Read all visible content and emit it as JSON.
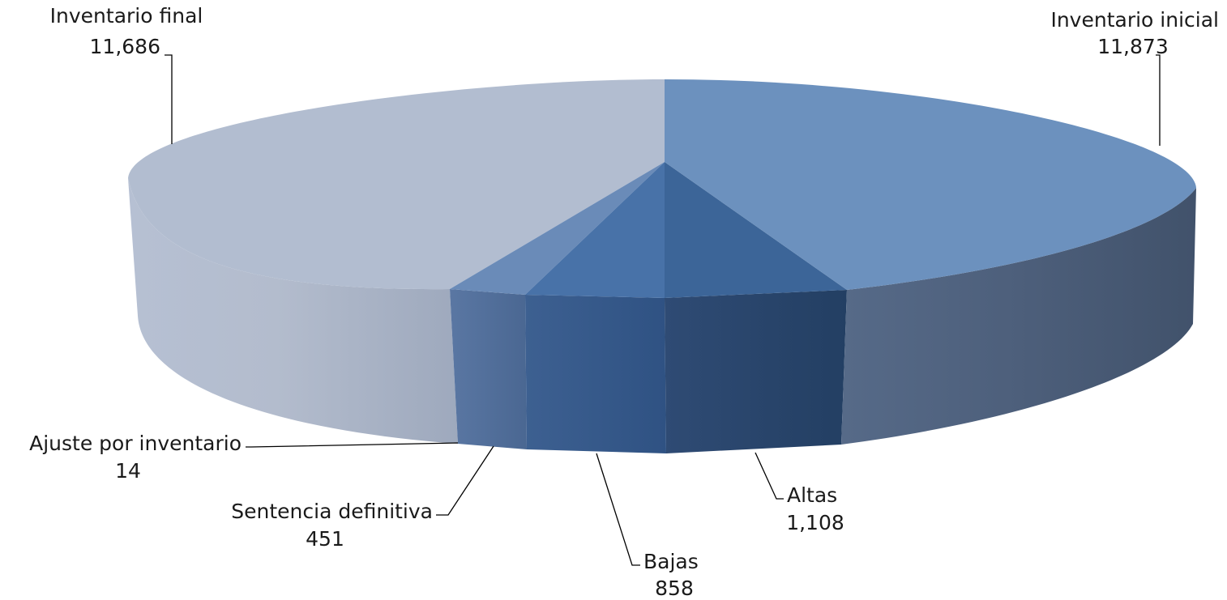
{
  "chart_data": {
    "type": "pie",
    "style": "3d",
    "slices": [
      {
        "label": "Inventario inicial",
        "value_label": "11,873",
        "value": 11873,
        "color": "#6c91be"
      },
      {
        "label": "Altas",
        "value_label": "1,108",
        "value": 1108,
        "color": "#3d6597"
      },
      {
        "label": "Bajas",
        "value_label": "858",
        "value": 858,
        "color": "#4772a8"
      },
      {
        "label": "Sentencia definitiva",
        "value_label": "451",
        "value": 451,
        "color": "#6b8cb8"
      },
      {
        "label": "Ajuste por inventario",
        "value_label": "14",
        "value": 14,
        "color": "#7d98c0"
      },
      {
        "label": "Inventario final",
        "value_label": "11,686",
        "value": 11686,
        "color": "#b2bdd0"
      }
    ]
  }
}
